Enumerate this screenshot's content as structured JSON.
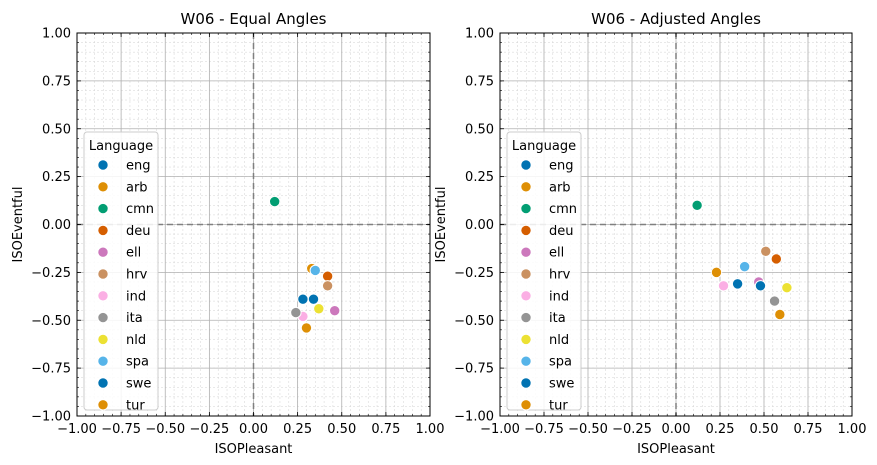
{
  "languages": [
    "eng",
    "arb",
    "cmn",
    "deu",
    "ell",
    "hrv",
    "ind",
    "ita",
    "nld",
    "spa",
    "swe",
    "tur"
  ],
  "colors": [
    "#0173b2",
    "#de8f05",
    "#029e73",
    "#d55e00",
    "#cc78bc",
    "#ca9161",
    "#fbafe4",
    "#949494",
    "#ece133",
    "#56b4e9",
    "#0173b2",
    "#de8f05"
  ],
  "chart_data": [
    {
      "type": "scatter",
      "title": "W06 - Equal Angles",
      "xlabel": "ISOPleasant",
      "ylabel": "ISOEventful",
      "xlim": [
        -1,
        1
      ],
      "ylim": [
        -1,
        1
      ],
      "xticks": [
        "−1.00",
        "−0.75",
        "−0.50",
        "−0.25",
        "0.00",
        "0.25",
        "0.50",
        "0.75",
        "1.00"
      ],
      "yticks": [
        "−1.00",
        "−0.75",
        "−0.50",
        "−0.25",
        "0.00",
        "0.25",
        "0.50",
        "0.75",
        "1.00"
      ],
      "grid": true,
      "legend_title": "Language",
      "legend_placement": "lower left",
      "series": [
        {
          "name": "eng",
          "x": 0.28,
          "y": -0.39
        },
        {
          "name": "arb",
          "x": 0.33,
          "y": -0.23
        },
        {
          "name": "cmn",
          "x": 0.12,
          "y": 0.12
        },
        {
          "name": "deu",
          "x": 0.42,
          "y": -0.27
        },
        {
          "name": "ell",
          "x": 0.46,
          "y": -0.45
        },
        {
          "name": "hrv",
          "x": 0.42,
          "y": -0.32
        },
        {
          "name": "ind",
          "x": 0.28,
          "y": -0.48
        },
        {
          "name": "ita",
          "x": 0.24,
          "y": -0.46
        },
        {
          "name": "nld",
          "x": 0.37,
          "y": -0.44
        },
        {
          "name": "spa",
          "x": 0.35,
          "y": -0.24
        },
        {
          "name": "swe",
          "x": 0.34,
          "y": -0.39
        },
        {
          "name": "tur",
          "x": 0.3,
          "y": -0.54
        }
      ]
    },
    {
      "type": "scatter",
      "title": "W06 - Adjusted Angles",
      "xlabel": "ISOPleasant",
      "ylabel": "ISOEventful",
      "xlim": [
        -1,
        1
      ],
      "ylim": [
        -1,
        1
      ],
      "xticks": [
        "−1.00",
        "−0.75",
        "−0.50",
        "−0.25",
        "0.00",
        "0.25",
        "0.50",
        "0.75",
        "1.00"
      ],
      "yticks": [
        "−1.00",
        "−0.75",
        "−0.50",
        "−0.25",
        "0.00",
        "0.25",
        "0.50",
        "0.75",
        "1.00"
      ],
      "grid": true,
      "legend_title": "Language",
      "legend_placement": "lower left",
      "series": [
        {
          "name": "eng",
          "x": 0.35,
          "y": -0.31
        },
        {
          "name": "arb",
          "x": 0.23,
          "y": -0.25
        },
        {
          "name": "cmn",
          "x": 0.12,
          "y": 0.1
        },
        {
          "name": "deu",
          "x": 0.57,
          "y": -0.18
        },
        {
          "name": "ell",
          "x": 0.47,
          "y": -0.3
        },
        {
          "name": "hrv",
          "x": 0.51,
          "y": -0.14
        },
        {
          "name": "ind",
          "x": 0.27,
          "y": -0.32
        },
        {
          "name": "ita",
          "x": 0.56,
          "y": -0.4
        },
        {
          "name": "nld",
          "x": 0.63,
          "y": -0.33
        },
        {
          "name": "spa",
          "x": 0.39,
          "y": -0.22
        },
        {
          "name": "swe",
          "x": 0.48,
          "y": -0.32
        },
        {
          "name": "tur",
          "x": 0.59,
          "y": -0.47
        }
      ]
    }
  ]
}
